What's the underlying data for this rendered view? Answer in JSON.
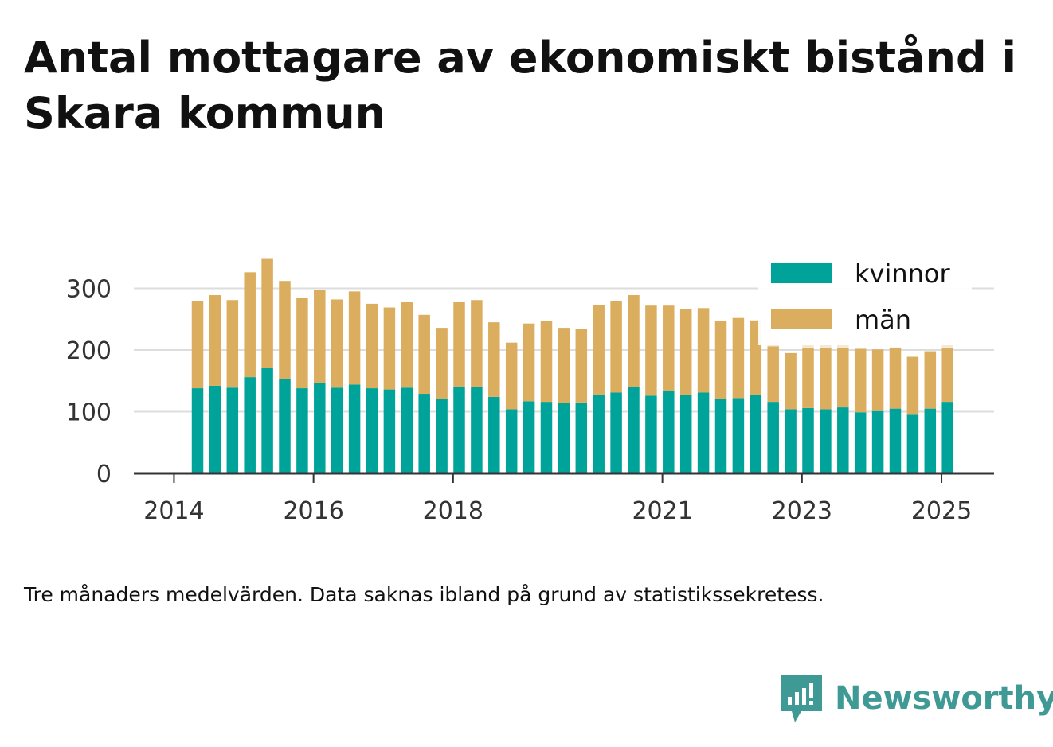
{
  "title": "Antal mottagare av ekonomiskt bistånd i Skara kommun",
  "note": "Tre månaders medelvärden. Data saknas ibland på grund av statistikssekretess.",
  "brand": "Newsworthy",
  "colors": {
    "kvinnor": "#00a39a",
    "man": "#dbad5f",
    "missing": "#f4e9d4",
    "grid": "#dddddd",
    "axis": "#333333"
  },
  "chart_data": {
    "type": "bar",
    "stacked": true,
    "x_tick_labels": [
      "2014",
      "2016",
      "2018",
      "2021",
      "2023",
      "2025"
    ],
    "ylim": [
      0,
      350
    ],
    "yticks": [
      0,
      100,
      200,
      300
    ],
    "y_tick_labels": [
      "0",
      "100",
      "200",
      "300"
    ],
    "grid": true,
    "legend_position": "top-right",
    "legend": [
      "kvinnor",
      "män"
    ],
    "categories": [
      "2014-Q2",
      "2014-Q3",
      "2014-Q4",
      "2015-Q1",
      "2015-Q2",
      "2015-Q3",
      "2015-Q4",
      "2016-Q1",
      "2016-Q2",
      "2016-Q3",
      "2016-Q4",
      "2017-Q1",
      "2017-Q2",
      "2017-Q3",
      "2017-Q4",
      "2018-Q1",
      "2018-Q2",
      "2018-Q3",
      "2018-Q4",
      "2019-Q1",
      "2019-Q2",
      "2019-Q3",
      "2019-Q4",
      "2020-Q1",
      "2020-Q2",
      "2020-Q3",
      "2020-Q4",
      "2021-Q1",
      "2021-Q2",
      "2021-Q3",
      "2021-Q4",
      "2022-Q1",
      "2022-Q2",
      "2022-Q3",
      "2022-Q4",
      "2023-Q1",
      "2023-Q2",
      "2023-Q3",
      "2023-Q4",
      "2024-Q1",
      "2024-Q2",
      "2024-Q3",
      "2024-Q4",
      "2025-Q1"
    ],
    "series": [
      {
        "name": "kvinnor",
        "values": [
          138,
          142,
          139,
          156,
          171,
          153,
          138,
          146,
          139,
          144,
          138,
          136,
          139,
          129,
          120,
          140,
          140,
          124,
          104,
          117,
          116,
          114,
          115,
          127,
          131,
          140,
          126,
          134,
          127,
          131,
          121,
          122,
          127,
          116,
          104,
          106,
          104,
          107,
          99,
          101,
          105,
          95,
          105,
          116
        ]
      },
      {
        "name": "män",
        "values": [
          142,
          147,
          142,
          170,
          178,
          159,
          146,
          151,
          143,
          151,
          137,
          133,
          139,
          128,
          116,
          138,
          141,
          121,
          108,
          126,
          131,
          122,
          119,
          146,
          149,
          149,
          146,
          138,
          139,
          137,
          126,
          130,
          121,
          90,
          91,
          98,
          100,
          96,
          103,
          100,
          99,
          94,
          93,
          88
        ]
      },
      {
        "name": "",
        "values": [
          0,
          0,
          0,
          0,
          0,
          0,
          0,
          0,
          0,
          0,
          0,
          0,
          0,
          0,
          0,
          0,
          0,
          0,
          0,
          0,
          0,
          0,
          0,
          0,
          0,
          0,
          0,
          0,
          0,
          0,
          0,
          0,
          0,
          16,
          0,
          6,
          7,
          10,
          0,
          0,
          0,
          0,
          0,
          17
        ]
      }
    ]
  }
}
